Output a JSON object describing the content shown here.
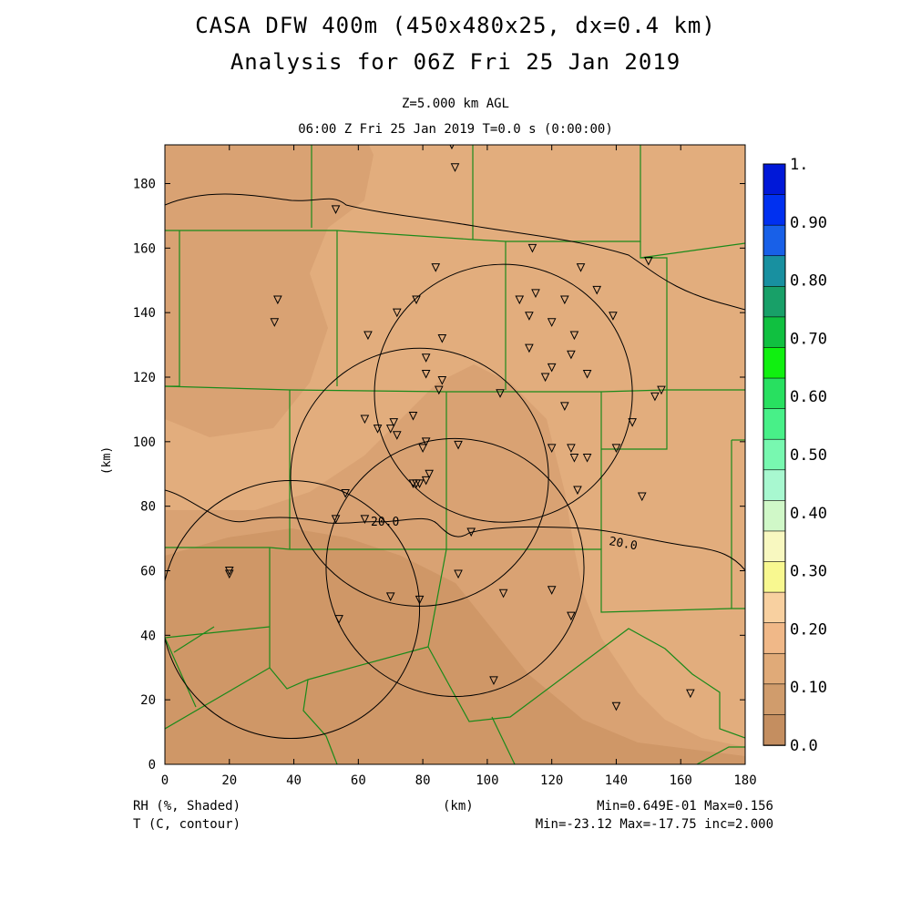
{
  "title": {
    "line1": "CASA DFW 400m (450x480x25, dx=0.4 km)",
    "line2": "Analysis for 06Z Fri 25 Jan 2019"
  },
  "subtitle": {
    "level": "Z=5.000 km AGL",
    "time": "06:00 Z Fri 25 Jan 2019    T=0.0 s (0:00:00)"
  },
  "axes": {
    "xlabel": "(km)",
    "ylabel": "(km)",
    "x_ticks": [
      "0",
      "20",
      "40",
      "60",
      "80",
      "100",
      "120",
      "140",
      "160",
      "180"
    ],
    "y_ticks": [
      "0",
      "20",
      "40",
      "60",
      "80",
      "100",
      "120",
      "140",
      "160",
      "180"
    ],
    "xlim": [
      0,
      180
    ],
    "ylim": [
      0,
      192
    ]
  },
  "colorbar": {
    "labels": [
      "1.",
      "0.90",
      "0.80",
      "0.70",
      "0.60",
      "0.50",
      "0.40",
      "0.30",
      "0.20",
      "0.10",
      "0.0"
    ],
    "colors_top_to_bottom": [
      "#0018d8",
      "#0030f0",
      "#1860e8",
      "#1890a0",
      "#18a068",
      "#10c040",
      "#10f010",
      "#28e060",
      "#48f088",
      "#78f8b0",
      "#a8f8d0",
      "#d0f8c8",
      "#f8f8c0",
      "#f8f890",
      "#f8d0a0",
      "#f0b888",
      "#e0aa78",
      "#d09c6c",
      "#c48e60"
    ]
  },
  "contour_labels": [
    "20.0",
    "20.0"
  ],
  "colors": {
    "shade_light": "#e2ad7d",
    "shade_mid": "#d9a273",
    "shade_dark": "#cf9767",
    "county_lines": "#1a8a1a",
    "contour": "#000000"
  },
  "footer": {
    "left1": "RH (%, Shaded)",
    "left2": "T (C, contour)",
    "center": "(km)",
    "right1": "Min=0.649E-01 Max=0.156",
    "right2": "Min=-23.12 Max=-17.75 inc=2.000"
  },
  "chart_data": {
    "type": "map",
    "domain_km": {
      "x": [
        0,
        180
      ],
      "y": [
        0,
        192
      ]
    },
    "shaded_field": "RH",
    "contour_field": "T",
    "rh_range": [
      0.0649,
      0.156
    ],
    "t_range": [
      -23.12,
      -17.75
    ],
    "t_increment": 2.0,
    "radar_rings": [
      {
        "center": [
          39,
          48
        ],
        "radius": 40
      },
      {
        "center": [
          79,
          89
        ],
        "radius": 40
      },
      {
        "center": [
          105,
          115
        ],
        "radius": 40
      },
      {
        "center": [
          90,
          61
        ],
        "radius": 40
      }
    ],
    "stations": [
      [
        89,
        192
      ],
      [
        90,
        185
      ],
      [
        53,
        172
      ],
      [
        114,
        160
      ],
      [
        129,
        154
      ],
      [
        150,
        156
      ],
      [
        84,
        154
      ],
      [
        35,
        144
      ],
      [
        34,
        137
      ],
      [
        63,
        133
      ],
      [
        78,
        144
      ],
      [
        72,
        140
      ],
      [
        110,
        144
      ],
      [
        115,
        146
      ],
      [
        113,
        139
      ],
      [
        120,
        137
      ],
      [
        124,
        144
      ],
      [
        134,
        147
      ],
      [
        127,
        133
      ],
      [
        113,
        129
      ],
      [
        126,
        127
      ],
      [
        120,
        123
      ],
      [
        118,
        120
      ],
      [
        139,
        139
      ],
      [
        131,
        121
      ],
      [
        86,
        132
      ],
      [
        81,
        126
      ],
      [
        81,
        121
      ],
      [
        86,
        119
      ],
      [
        85,
        116
      ],
      [
        104,
        115
      ],
      [
        152,
        114
      ],
      [
        154,
        116
      ],
      [
        124,
        111
      ],
      [
        62,
        107
      ],
      [
        66,
        104
      ],
      [
        70,
        104
      ],
      [
        71,
        106
      ],
      [
        72,
        102
      ],
      [
        77,
        108
      ],
      [
        145,
        106
      ],
      [
        120,
        98
      ],
      [
        80,
        98
      ],
      [
        81,
        100
      ],
      [
        91,
        99
      ],
      [
        126,
        98
      ],
      [
        127,
        95
      ],
      [
        131,
        95
      ],
      [
        140,
        98
      ],
      [
        77,
        87
      ],
      [
        78,
        87
      ],
      [
        79,
        87
      ],
      [
        81,
        88
      ],
      [
        82,
        90
      ],
      [
        128,
        85
      ],
      [
        148,
        83
      ],
      [
        56,
        84
      ],
      [
        53,
        76
      ],
      [
        62,
        76
      ],
      [
        95,
        72
      ],
      [
        20,
        60
      ],
      [
        20,
        59
      ],
      [
        91,
        59
      ],
      [
        70,
        52
      ],
      [
        79,
        51
      ],
      [
        105,
        53
      ],
      [
        120,
        54
      ],
      [
        126,
        46
      ],
      [
        54,
        45
      ],
      [
        102,
        26
      ],
      [
        140,
        18
      ],
      [
        163,
        22
      ]
    ]
  }
}
